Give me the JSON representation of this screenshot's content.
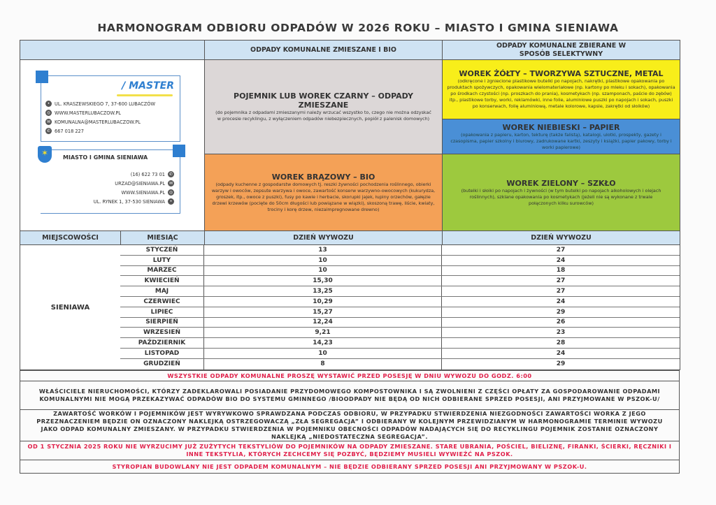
{
  "title": "HARMONOGRAM ODBIORU ODPADÓW W 2026 ROKU – MIASTO I GMINA SIENIAWA",
  "headers": {
    "mixed": "ODPADY KOMUNALNE ZMIESZANE I BIO",
    "selective": "ODPADY KOMUNALNE ZBIERANE W SPOSÓB SELEKTYWNY"
  },
  "master": {
    "logo": "MASTER",
    "address": "UL. KRASZEWSKIEGO 7, 37-600 LUBACZÓW",
    "www": "WWW.MASTERLUBACZOW.PL",
    "email": "KOMUNALNA@MASTERLUBACZOW.PL",
    "phone": "667 018 227"
  },
  "gmina": {
    "name": "MIASTO I GMINA SIENIAWA",
    "phone": "(16) 622 73 01",
    "email": "URZAD@SIENIAWA.PL",
    "www": "WWW.SIENIAWA.PL",
    "address": "UL. RYNEK 1, 37-530 SIENIAWA"
  },
  "bins": {
    "black": {
      "title": "POJEMNIK LUB WOREK CZARNY – ODPADY ZMIESZANE",
      "desc": "(do pojemnika z odpadami zmieszanymi należy wrzucać wszystko to, czego nie można odzyskać w procesie recyklingu, z wyłączeniem odpadów niebezpiecznych, popiół z palenisk domowych)",
      "color": "#dcd7d7"
    },
    "brown": {
      "title": "WOREK BRĄZOWY – BIO",
      "desc": "(odpady kuchenne z gospodarstw domowych tj. reszki żywności pochodzenia roślinnego, obierki warzyw i owoców, zepsute warzywa i owoce, zawartość konserw warzywno-owocowych (kukurydza, groszek, itp., owoce z puszki), fusy po kawie i herbacie, skorupki jajek, łupiny orzechów, gałęzie drzewi krzewów (pocięte do 50cm długości lub powiązane w wiązki), skoszoną trawę, liście, kwiaty, trociny i korę drzew, niezaimpregnowane drewno)",
      "color": "#f4a157"
    },
    "yellow": {
      "title": "WOREK ŻÓŁTY – TWORZYWA SZTUCZNE, METAL",
      "desc": "(odkręcone i zgniecione plastikowe butelki po napojach, nakrętki, plastikowe opakowania po produktach spożywczych, opakowania wielomateriałowe (np. kartony po mleku i sokach), opakowania po środkach czystości (np. proszkach do prania), kosmetykach (np. szamponach, paście do zębów) itp., plastikowe torby, worki, reklamówki, inne folie, aluminiowe puszki po napojach i sokach, puszki po konserwach, folię aluminiową, metale kolorowe, kapsle, zakrętki od słoików)",
      "color": "#f8ee1a"
    },
    "blue": {
      "title": "WOREK NIEBIESKI – PAPIER",
      "desc": "(opakowania z papieru, karton, tekturę (także falistą), katalogi, ulotki, prospekty, gazety i czasopisma, papier szkolny i biurowy, zadrukowane kartki, zeszyty i książki, papier pakowy, torby i worki papierowe)",
      "color": "#4a8fd6"
    },
    "green": {
      "title": "WOREK ZIELONY – SZKŁO",
      "desc": "(butelki i słoiki po napojach i żywności (w tym butelki po napojach alkoholowych i olejach roślinnych), szklane opakowania po kosmetykach (jeżeli nie są wykonane z trwale połączonych kilku surowców)",
      "color": "#9dc93e"
    }
  },
  "table": {
    "col_locality": "MIEJSCOWOŚCI",
    "col_month": "MIESIĄC",
    "col_day_mixed": "DZIEŃ WYWOZU",
    "col_day_selective": "DZIEŃ WYWOZU",
    "locality": "SIENIAWA",
    "rows": [
      {
        "month": "STYCZEŃ",
        "mixed": "13",
        "selective": "27"
      },
      {
        "month": "LUTY",
        "mixed": "10",
        "selective": "24"
      },
      {
        "month": "MARZEC",
        "mixed": "10",
        "selective": "18"
      },
      {
        "month": "KWIECIEŃ",
        "mixed": "15,30",
        "selective": "27"
      },
      {
        "month": "MAJ",
        "mixed": "13,25",
        "selective": "27"
      },
      {
        "month": "CZERWIEC",
        "mixed": "10,29",
        "selective": "24"
      },
      {
        "month": "LIPIEC",
        "mixed": "15,27",
        "selective": "29"
      },
      {
        "month": "SIERPIEŃ",
        "mixed": "12,24",
        "selective": "26"
      },
      {
        "month": "WRZESIEŃ",
        "mixed": "9,21",
        "selective": "23"
      },
      {
        "month": "PAŹDZIERNIK",
        "mixed": "14,23",
        "selective": "28"
      },
      {
        "month": "LISTOPAD",
        "mixed": "10",
        "selective": "24"
      },
      {
        "month": "GRUDZIEŃ",
        "mixed": "8",
        "selective": "29"
      }
    ]
  },
  "notes": [
    "WSZYSTKIE ODPADY KOMUNALNE PROSZĘ WYSTAWIĆ PRZED POSESJĘ W DNIU WYWOZU DO GODZ. 6:00",
    "WŁAŚCICIELE NIERUCHOMOŚCI, KTÓRZY ZADEKLAROWALI POSIADANIE PRZYDOMOWEGO KOMPOSTOWNIKA I SĄ ZWOLNIENI Z CZĘŚCI OPŁATY ZA GOSPODAROWANIE ODPADAMI KOMUNALNYMI NIE MOGĄ PRZEKAZYWAĆ ODPADÓW BIO DO SYSTEMU GMINNEGO /BIOODPADY NIE BĘDĄ OD NICH ODBIERANE SPRZED POSESJI, ANI PRZYJMOWANE W PSZOK-U/",
    "ZAWARTOŚĆ WORKÓW I POJEMNIKÓW JEST WYRYWKOWO SPRAWDZANA PODCZAS ODBIORU, W PRZYPADKU STWIERDZENIA NIEZGODNOŚCI ZAWARTOŚCI WORKA Z JEGO PRZEZNACZENIEM BĘDZIE ON OZNACZONY NAKLEJKĄ OSTRZEGOWACZĄ „ZŁA SEGREGACJA” I ODBIERANY W KOLEJNYM PRZEWIDZIANYM W HARMONOGRAMIE TERMINIE WYWOZU JAKO ODPAD KOMUNALNY ZMIESZANY. W PRZYPADKU STWIERDZENIA W POJEMNIKU OBECNOŚCI ODPADÓW NADAJĄCYCH SIĘ DO RECYKLINGU POJEMNIK ZOSTANIE OZNACZONY NAKLEJKĄ „NIEDOSTATECZNA SEGREGACJA”.",
    "OD 1 STYCZNIA 2025 ROKU NIE WYRZUCIMY JUŻ ZUŻYTYCH TEKSTYLIÓW DO POJEMNIKÓW NA ODPADY ZMIESZANE. STARE UBRANIA, POŚCIEL, BIELIZNĘ, FIRANKI, ŚCIERKI, RĘCZNIKI I INNE TEKSTYLIA, KTÓRYCH ZECHCEMY SIĘ POZBYĆ, BĘDZIEMY MUSIELI WYWIEŹĆ NA PSZOK.",
    "STYROPIAN BUDOWLANY NIE JEST ODPADEM KOMUNALNYM – NIE BĘDZIE ODBIERANY SPRZED POSESJI ANI PRZYJMOWANY W PSZOK-U."
  ],
  "colors": {
    "header": "#cfe3f3",
    "note_red": "#e0204a",
    "brand_blue": "#2f7fd0"
  }
}
